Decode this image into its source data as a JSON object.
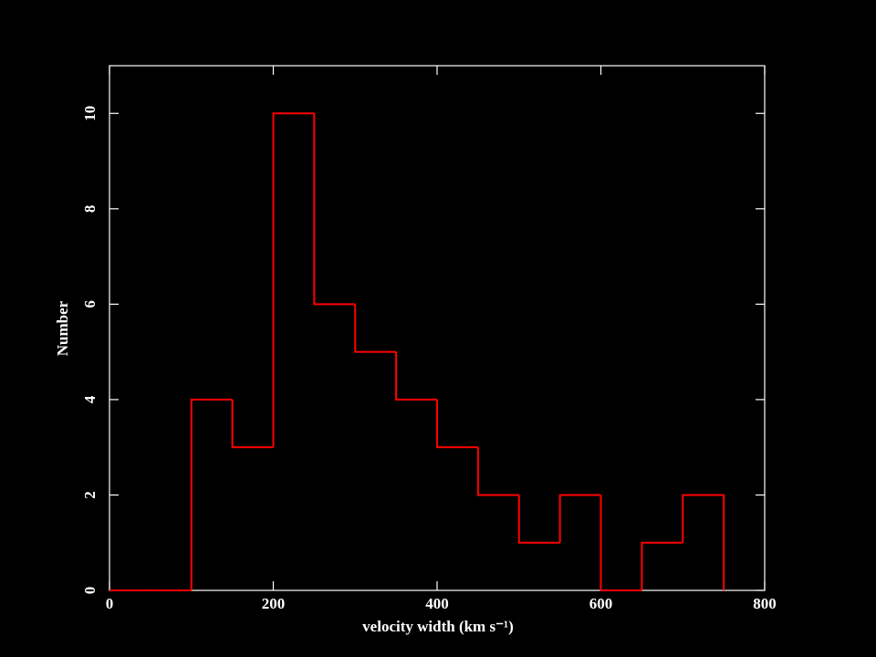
{
  "chart_data": {
    "type": "histogram",
    "xlabel": "velocity width (km s⁻¹)",
    "ylabel": "Number",
    "bins": [
      0,
      50,
      100,
      150,
      200,
      250,
      300,
      350,
      400,
      450,
      500,
      550,
      600,
      650,
      700,
      750
    ],
    "values": [
      0,
      0,
      4,
      3,
      10,
      6,
      5,
      4,
      3,
      2,
      1,
      2,
      0,
      1,
      2
    ],
    "color": "#ff0000",
    "xlim": [
      0,
      800
    ],
    "ylim": [
      0,
      11
    ],
    "xticks": [
      0,
      200,
      400,
      600,
      800
    ],
    "yticks": [
      0,
      2,
      4,
      6,
      8,
      10
    ]
  }
}
